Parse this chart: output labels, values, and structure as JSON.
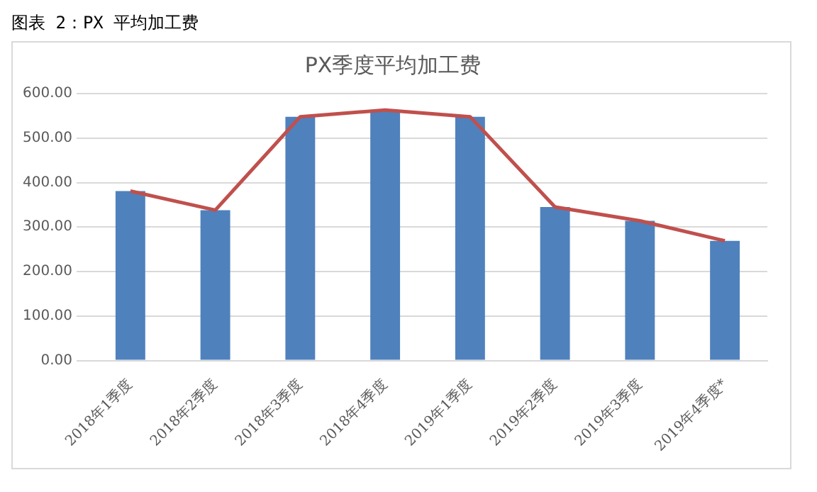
{
  "chart_data": {
    "type": "bar",
    "title": "图表 2：PX 平均加工费",
    "subtitle": "PX季度平均加工费",
    "categories": [
      "2018年1季度",
      "2018年2季度",
      "2018年3季度",
      "2018年4季度",
      "2019年1季度",
      "2019年2季度",
      "2019年3季度",
      "2019年4季度*"
    ],
    "series": [
      {
        "color": "#4f81bd",
        "values": [
          381,
          338,
          548,
          563,
          548,
          345,
          314,
          269
        ]
      },
      {
        "type": "line",
        "color": "#c0504d",
        "values": [
          381,
          338,
          548,
          563,
          548,
          345,
          314,
          269
        ]
      }
    ],
    "ylim": [
      0,
      600
    ],
    "yticks": [
      {
        "value": 0,
        "label": "0.00"
      },
      {
        "value": 100,
        "label": "100.00"
      },
      {
        "value": 200,
        "label": "200.00"
      },
      {
        "value": 300,
        "label": "300.00"
      },
      {
        "value": 400,
        "label": "400.00"
      },
      {
        "value": 500,
        "label": "500.00"
      },
      {
        "value": 600,
        "label": "600.00"
      }
    ],
    "grid": "y",
    "marker": "none"
  }
}
